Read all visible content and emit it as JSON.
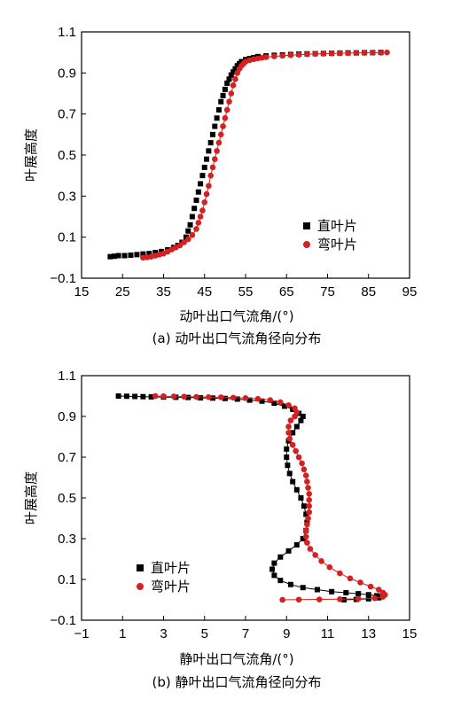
{
  "chart_data": [
    {
      "type": "scatter",
      "xlabel": "动叶出口气流角/(°)",
      "ylabel": "叶展高度",
      "caption": "(a) 动叶出口气流角径向分布",
      "xlim": [
        15,
        95
      ],
      "ylim": [
        -0.1,
        1.1
      ],
      "xticks": [
        15,
        25,
        35,
        45,
        55,
        65,
        75,
        85,
        95
      ],
      "yticks": [
        -0.1,
        0.1,
        0.3,
        0.5,
        0.7,
        0.9,
        1.1
      ],
      "legend_position": "center-right",
      "grid": false,
      "series": [
        {
          "name": "直叶片",
          "marker": "square",
          "color": "#000000",
          "line": false,
          "points": [
            [
              22,
              0.005
            ],
            [
              23,
              0.007
            ],
            [
              24,
              0.01
            ],
            [
              25.5,
              0.01
            ],
            [
              27,
              0.012
            ],
            [
              28.5,
              0.015
            ],
            [
              30,
              0.018
            ],
            [
              31.5,
              0.02
            ],
            [
              33,
              0.025
            ],
            [
              34.5,
              0.03
            ],
            [
              36,
              0.038
            ],
            [
              37.5,
              0.05
            ],
            [
              38.5,
              0.06
            ],
            [
              39.5,
              0.075
            ],
            [
              40.5,
              0.1
            ],
            [
              41,
              0.13
            ],
            [
              41.5,
              0.16
            ],
            [
              42,
              0.2
            ],
            [
              42.5,
              0.24
            ],
            [
              43,
              0.28
            ],
            [
              43.5,
              0.32
            ],
            [
              44,
              0.36
            ],
            [
              44.5,
              0.4
            ],
            [
              45,
              0.44
            ],
            [
              45.5,
              0.48
            ],
            [
              46,
              0.52
            ],
            [
              46.5,
              0.56
            ],
            [
              47,
              0.6
            ],
            [
              47.5,
              0.64
            ],
            [
              48,
              0.68
            ],
            [
              48.5,
              0.72
            ],
            [
              49,
              0.76
            ],
            [
              49.5,
              0.79
            ],
            [
              50,
              0.82
            ],
            [
              50.5,
              0.85
            ],
            [
              51,
              0.87
            ],
            [
              51.5,
              0.89
            ],
            [
              52,
              0.905
            ],
            [
              52.5,
              0.92
            ],
            [
              53,
              0.935
            ],
            [
              53.5,
              0.945
            ],
            [
              54,
              0.955
            ],
            [
              55,
              0.965
            ],
            [
              56,
              0.97
            ],
            [
              57,
              0.975
            ],
            [
              58,
              0.98
            ],
            [
              60,
              0.983
            ],
            [
              62,
              0.986
            ],
            [
              64,
              0.988
            ],
            [
              66,
              0.99
            ],
            [
              68,
              0.992
            ],
            [
              70,
              0.993
            ],
            [
              72,
              0.994
            ],
            [
              74,
              0.995
            ],
            [
              76,
              0.996
            ],
            [
              78,
              0.997
            ],
            [
              80,
              0.998
            ],
            [
              82,
              0.998
            ],
            [
              84,
              0.999
            ],
            [
              86,
              0.999
            ],
            [
              88,
              1.0
            ]
          ]
        },
        {
          "name": "弯叶片",
          "marker": "circle",
          "color": "#d42020",
          "line": true,
          "points": [
            [
              30,
              0.0
            ],
            [
              31,
              0.002
            ],
            [
              32,
              0.005
            ],
            [
              33,
              0.01
            ],
            [
              34,
              0.015
            ],
            [
              35,
              0.02
            ],
            [
              36,
              0.03
            ],
            [
              37,
              0.04
            ],
            [
              38,
              0.05
            ],
            [
              39,
              0.06
            ],
            [
              40,
              0.075
            ],
            [
              41,
              0.09
            ],
            [
              42,
              0.11
            ],
            [
              43,
              0.14
            ],
            [
              43.5,
              0.17
            ],
            [
              44,
              0.2
            ],
            [
              44.5,
              0.23
            ],
            [
              45,
              0.27
            ],
            [
              45.5,
              0.31
            ],
            [
              46,
              0.35
            ],
            [
              46.5,
              0.4
            ],
            [
              47,
              0.44
            ],
            [
              47.5,
              0.48
            ],
            [
              48,
              0.52
            ],
            [
              48.5,
              0.56
            ],
            [
              49,
              0.6
            ],
            [
              49.5,
              0.64
            ],
            [
              50,
              0.68
            ],
            [
              50.5,
              0.72
            ],
            [
              51,
              0.76
            ],
            [
              51.5,
              0.8
            ],
            [
              52,
              0.84
            ],
            [
              52.5,
              0.87
            ],
            [
              53,
              0.9
            ],
            [
              53.5,
              0.92
            ],
            [
              54,
              0.935
            ],
            [
              54.5,
              0.945
            ],
            [
              55,
              0.955
            ],
            [
              56,
              0.962
            ],
            [
              57,
              0.967
            ],
            [
              58,
              0.971
            ],
            [
              59,
              0.974
            ],
            [
              60,
              0.977
            ],
            [
              62,
              0.981
            ],
            [
              64,
              0.984
            ],
            [
              66,
              0.987
            ],
            [
              68,
              0.989
            ],
            [
              70,
              0.991
            ],
            [
              72,
              0.993
            ],
            [
              74,
              0.994
            ],
            [
              76,
              0.995
            ],
            [
              78,
              0.996
            ],
            [
              80,
              0.997
            ],
            [
              82,
              0.998
            ],
            [
              84,
              0.998
            ],
            [
              86,
              0.999
            ],
            [
              88,
              0.999
            ],
            [
              89.5,
              1.0
            ]
          ]
        }
      ]
    },
    {
      "type": "scatter",
      "xlabel": "静叶出口气流角/(°)",
      "ylabel": "叶展高度",
      "caption": "(b) 静叶出口气流角径向分布",
      "xlim": [
        -1,
        15
      ],
      "ylim": [
        -0.1,
        1.1
      ],
      "xticks": [
        -1,
        1,
        3,
        5,
        7,
        9,
        11,
        13,
        15
      ],
      "yticks": [
        -0.1,
        0.1,
        0.3,
        0.5,
        0.7,
        0.9,
        1.1
      ],
      "legend_position": "bottom-left",
      "grid": false,
      "series": [
        {
          "name": "直叶片",
          "marker": "square",
          "color": "#000000",
          "line": true,
          "points": [
            [
              0.8,
              1.0
            ],
            [
              1.2,
              0.999
            ],
            [
              1.6,
              0.998
            ],
            [
              2.0,
              0.997
            ],
            [
              2.4,
              0.996
            ],
            [
              3.0,
              0.995
            ],
            [
              3.6,
              0.994
            ],
            [
              4.2,
              0.993
            ],
            [
              4.8,
              0.991
            ],
            [
              5.4,
              0.99
            ],
            [
              6.0,
              0.988
            ],
            [
              6.6,
              0.985
            ],
            [
              7.2,
              0.98
            ],
            [
              7.8,
              0.975
            ],
            [
              8.4,
              0.965
            ],
            [
              8.9,
              0.95
            ],
            [
              9.3,
              0.935
            ],
            [
              9.6,
              0.915
            ],
            [
              9.8,
              0.9
            ],
            [
              9.7,
              0.88
            ],
            [
              9.5,
              0.85
            ],
            [
              9.3,
              0.82
            ],
            [
              9.1,
              0.78
            ],
            [
              9.0,
              0.74
            ],
            [
              9.0,
              0.7
            ],
            [
              9.05,
              0.66
            ],
            [
              9.15,
              0.62
            ],
            [
              9.3,
              0.58
            ],
            [
              9.5,
              0.54
            ],
            [
              9.7,
              0.5
            ],
            [
              9.85,
              0.46
            ],
            [
              9.95,
              0.42
            ],
            [
              10.0,
              0.38
            ],
            [
              9.95,
              0.34
            ],
            [
              9.8,
              0.3
            ],
            [
              9.5,
              0.27
            ],
            [
              9.1,
              0.24
            ],
            [
              8.7,
              0.21
            ],
            [
              8.4,
              0.18
            ],
            [
              8.3,
              0.15
            ],
            [
              8.4,
              0.12
            ],
            [
              8.7,
              0.095
            ],
            [
              9.2,
              0.075
            ],
            [
              9.8,
              0.06
            ],
            [
              10.5,
              0.05
            ],
            [
              11.2,
              0.04
            ],
            [
              11.9,
              0.035
            ],
            [
              12.5,
              0.03
            ],
            [
              13.0,
              0.025
            ],
            [
              13.4,
              0.02
            ],
            [
              13.6,
              0.015
            ],
            [
              13.5,
              0.01
            ],
            [
              13.0,
              0.005
            ],
            [
              12.4,
              0.002
            ],
            [
              11.8,
              0.0
            ]
          ]
        },
        {
          "name": "弯叶片",
          "marker": "circle",
          "color": "#d42020",
          "line": true,
          "points": [
            [
              2.6,
              1.0
            ],
            [
              3.0,
              0.999
            ],
            [
              3.5,
              0.998
            ],
            [
              4.0,
              0.997
            ],
            [
              4.6,
              0.996
            ],
            [
              5.2,
              0.995
            ],
            [
              5.8,
              0.994
            ],
            [
              6.4,
              0.992
            ],
            [
              7.0,
              0.99
            ],
            [
              7.6,
              0.986
            ],
            [
              8.2,
              0.98
            ],
            [
              8.7,
              0.97
            ],
            [
              9.1,
              0.955
            ],
            [
              9.4,
              0.94
            ],
            [
              9.5,
              0.92
            ],
            [
              9.4,
              0.9
            ],
            [
              9.2,
              0.88
            ],
            [
              9.1,
              0.85
            ],
            [
              9.1,
              0.82
            ],
            [
              9.15,
              0.79
            ],
            [
              9.3,
              0.76
            ],
            [
              9.45,
              0.73
            ],
            [
              9.6,
              0.7
            ],
            [
              9.75,
              0.67
            ],
            [
              9.85,
              0.64
            ],
            [
              9.95,
              0.61
            ],
            [
              10.0,
              0.58
            ],
            [
              10.05,
              0.55
            ],
            [
              10.1,
              0.52
            ],
            [
              10.1,
              0.49
            ],
            [
              10.1,
              0.46
            ],
            [
              10.1,
              0.43
            ],
            [
              10.05,
              0.4
            ],
            [
              10.0,
              0.37
            ],
            [
              9.95,
              0.34
            ],
            [
              9.95,
              0.31
            ],
            [
              10.0,
              0.28
            ],
            [
              10.15,
              0.25
            ],
            [
              10.4,
              0.22
            ],
            [
              10.7,
              0.19
            ],
            [
              11.1,
              0.16
            ],
            [
              11.6,
              0.13
            ],
            [
              12.1,
              0.105
            ],
            [
              12.6,
              0.085
            ],
            [
              13.1,
              0.065
            ],
            [
              13.5,
              0.05
            ],
            [
              13.7,
              0.035
            ],
            [
              13.8,
              0.025
            ],
            [
              13.7,
              0.015
            ],
            [
              13.3,
              0.008
            ],
            [
              12.5,
              0.005
            ],
            [
              11.6,
              0.003
            ],
            [
              10.6,
              0.002
            ],
            [
              9.6,
              0.001
            ],
            [
              8.8,
              0.0
            ]
          ]
        }
      ]
    }
  ]
}
